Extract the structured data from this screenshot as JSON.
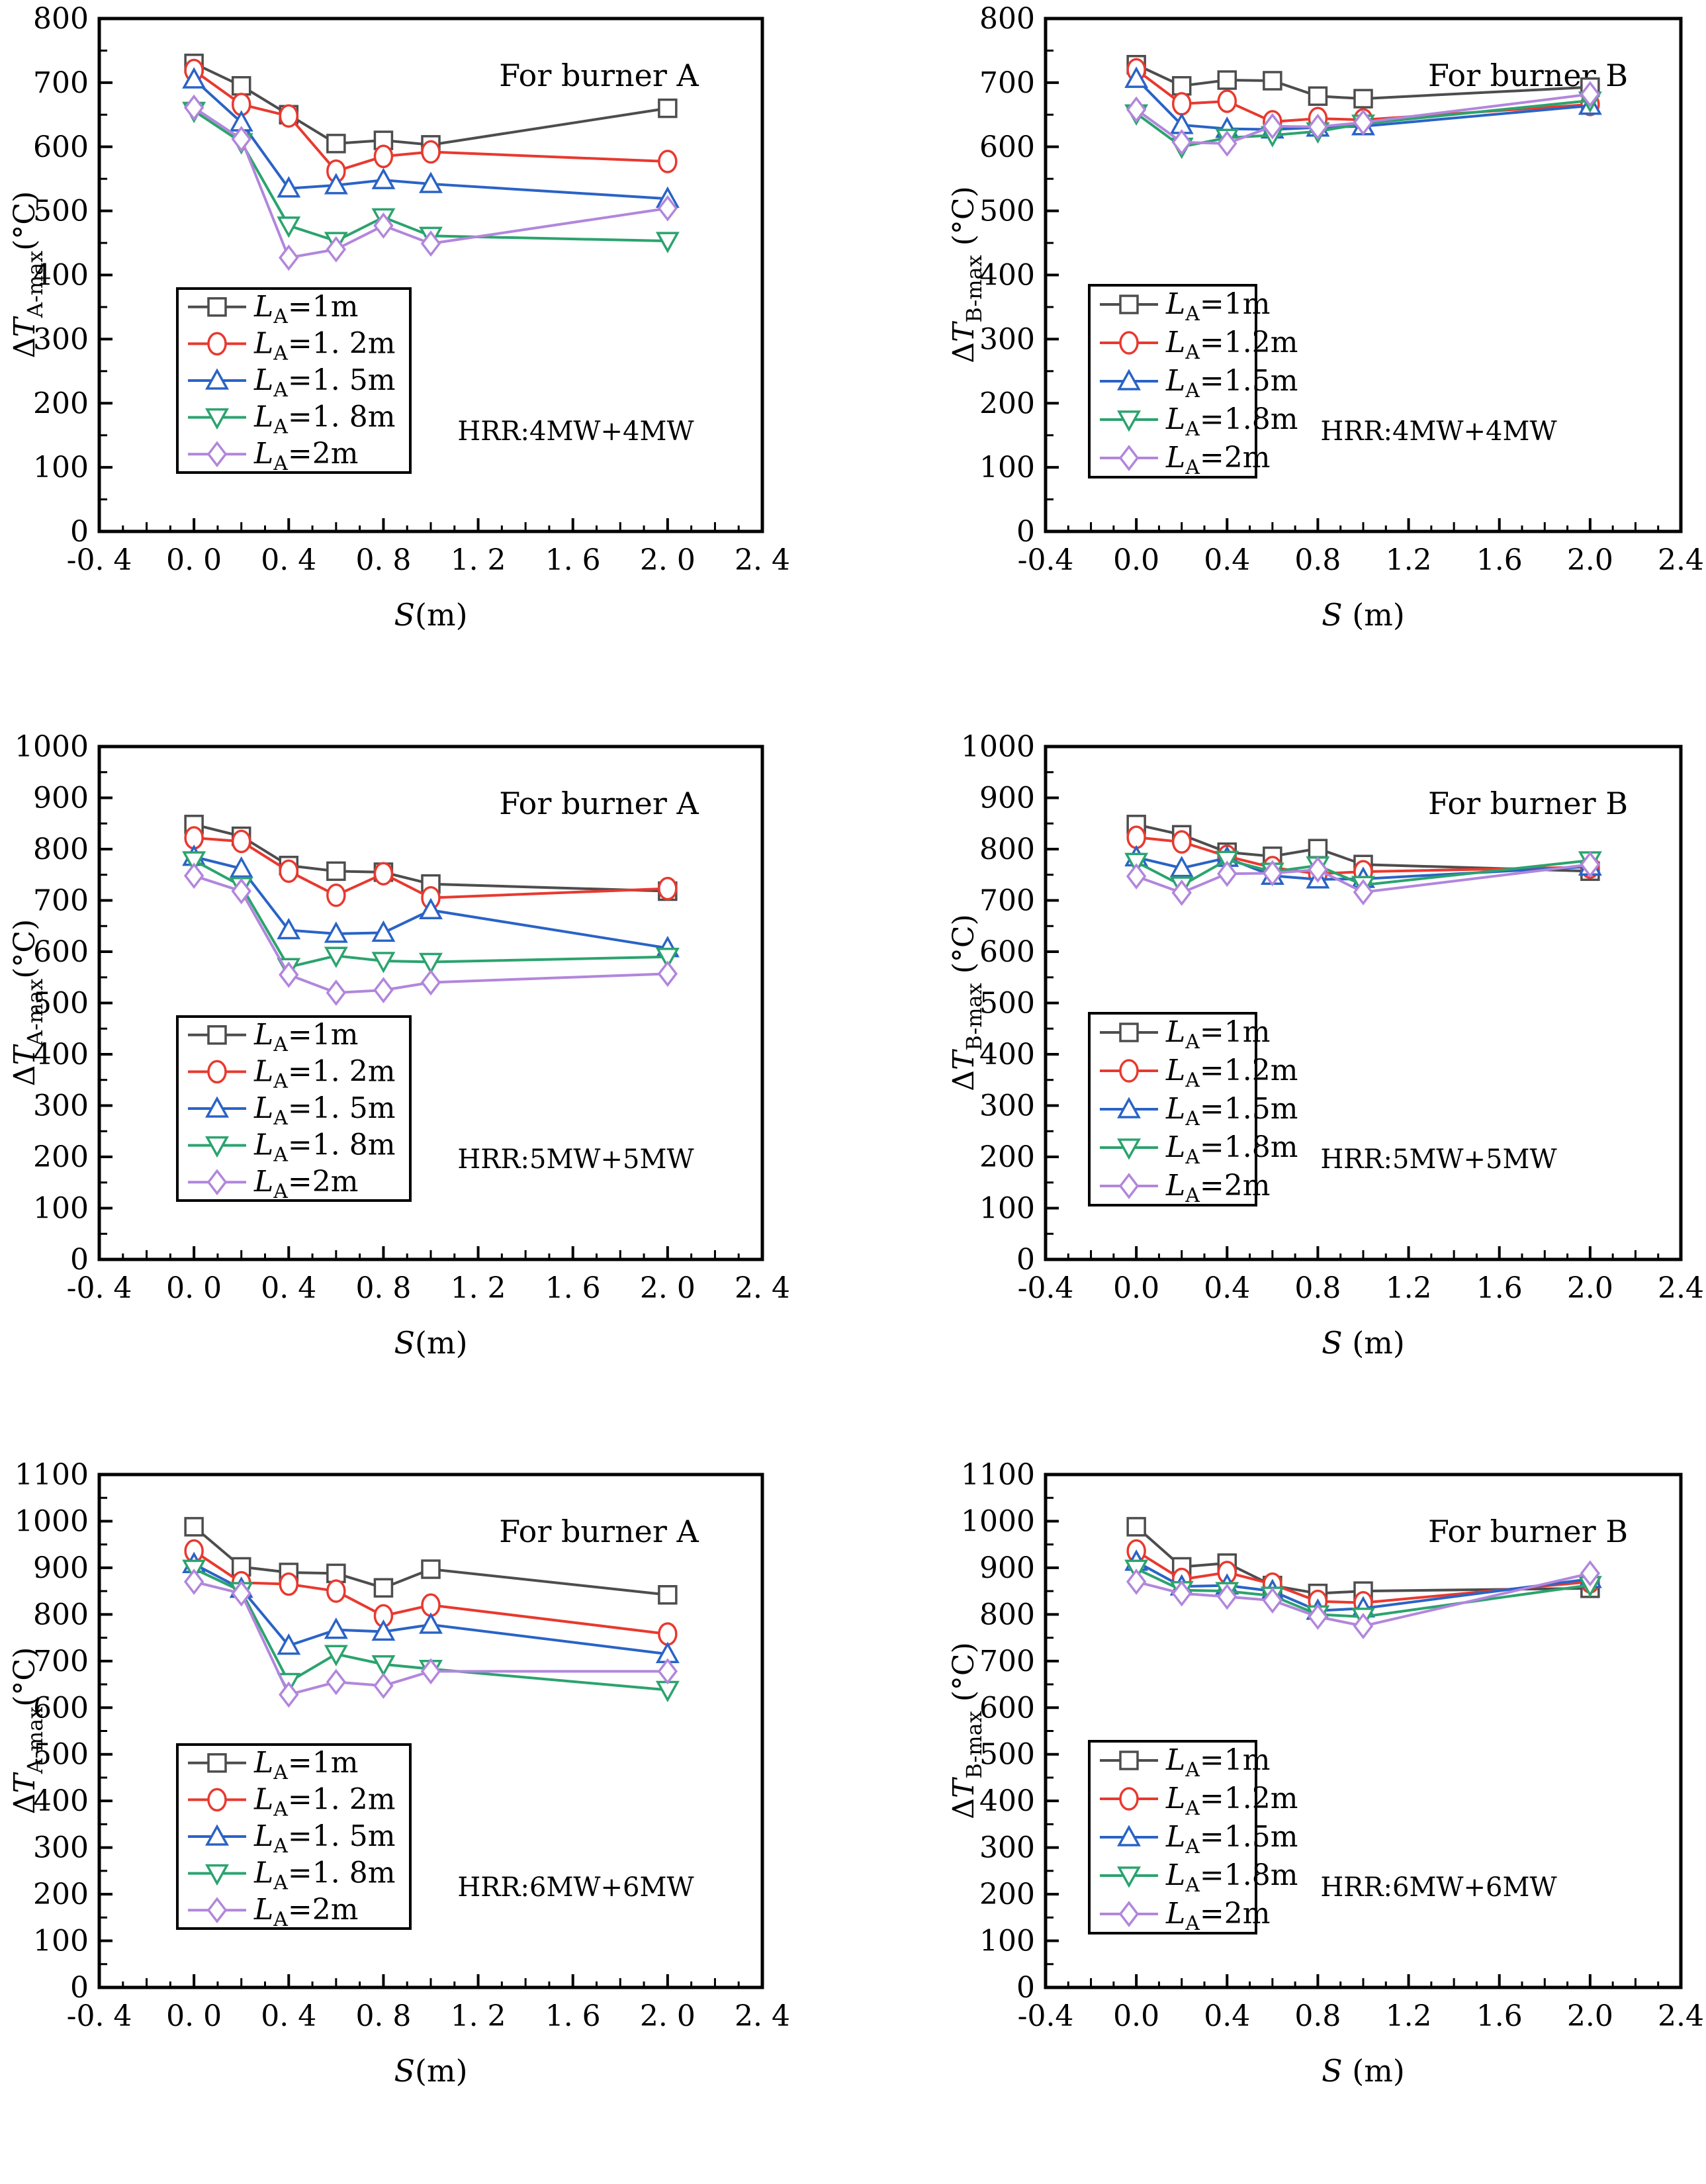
{
  "figure": {
    "background": "#ffffff",
    "frame_color": "#000000",
    "series_colors": {
      "LA-1m": "#4d4d4d",
      "LA-1.2m": "#e8392f",
      "LA-1.5m": "#2a63c6",
      "LA-1.8m": "#2ba36e",
      "LA-2m": "#b286dc"
    }
  },
  "chart_data": [
    {
      "id": "burnerA-4MW",
      "type": "line",
      "side": "left",
      "title": "For burner A",
      "annotation": "HRR:4MW+4MW",
      "xlabel_s": "S",
      "xlabel_rest": "(m)",
      "ylabel_delta": "Δ",
      "ylabel_T": "T",
      "ylabel_sub": "A-max",
      "ylabel_unit": "(°C)",
      "xlim": [
        -0.4,
        2.4
      ],
      "ylim": [
        0,
        800
      ],
      "ytick_step": 100,
      "xtick_labels": [
        "-0. 4",
        "0. 0",
        "0. 4",
        "0. 8",
        "1. 2",
        "1. 6",
        "2. 0",
        "2. 4"
      ],
      "x": [
        0,
        0.2,
        0.4,
        0.6,
        0.8,
        1.0,
        2.0
      ],
      "series": [
        {
          "name": "LA-1m",
          "label_pre": "L",
          "label_sub": "A",
          "label_post": "=1m",
          "color": "#4d4d4d",
          "marker": "square",
          "values": [
            730,
            695,
            650,
            605,
            610,
            603,
            660
          ]
        },
        {
          "name": "LA-1.2m",
          "label_pre": "L",
          "label_sub": "A",
          "label_post": "=1. 2m",
          "color": "#e8392f",
          "marker": "circle",
          "values": [
            719,
            666,
            648,
            562,
            585,
            592,
            577
          ]
        },
        {
          "name": "LA-1.5m",
          "label_pre": "L",
          "label_sub": "A",
          "label_post": "=1. 5m",
          "color": "#2a63c6",
          "marker": "triangle-up",
          "values": [
            705,
            638,
            535,
            540,
            548,
            542,
            519
          ]
        },
        {
          "name": "LA-1.8m",
          "label_pre": "L",
          "label_sub": "A",
          "label_post": "=1. 8m",
          "color": "#2ba36e",
          "marker": "triangle-down",
          "values": [
            656,
            607,
            477,
            453,
            490,
            461,
            453
          ]
        },
        {
          "name": "LA-2m",
          "label_pre": "L",
          "label_sub": "A",
          "label_post": "=2m",
          "color": "#b286dc",
          "marker": "diamond",
          "values": [
            661,
            612,
            427,
            440,
            477,
            449,
            504
          ]
        }
      ]
    },
    {
      "id": "burnerB-4MW",
      "type": "line",
      "side": "right",
      "title": "For burner B",
      "annotation": "HRR:4MW+4MW",
      "xlabel_s": "S",
      "xlabel_rest": " (m)",
      "ylabel_delta": "Δ",
      "ylabel_T": "T",
      "ylabel_sub": "B-max",
      "ylabel_unit": " (°C)",
      "xlim": [
        -0.4,
        2.4
      ],
      "ylim": [
        0,
        800
      ],
      "ytick_step": 100,
      "xtick_labels": [
        "-0.4",
        "0.0",
        "0.4",
        "0.8",
        "1.2",
        "1.6",
        "2.0",
        "2.4"
      ],
      "x": [
        0,
        0.2,
        0.4,
        0.6,
        0.8,
        1.0,
        2.0
      ],
      "series": [
        {
          "name": "LA-1m",
          "label_pre": "L",
          "label_sub": "A",
          "label_post": "=1m",
          "color": "#4d4d4d",
          "marker": "square",
          "values": [
            728,
            695,
            704,
            703,
            679,
            675,
            693
          ]
        },
        {
          "name": "LA-1.2m",
          "label_pre": "L",
          "label_sub": "A",
          "label_post": "=1.2m",
          "color": "#e8392f",
          "marker": "circle",
          "values": [
            720,
            667,
            671,
            639,
            644,
            642,
            666
          ]
        },
        {
          "name": "LA-1.5m",
          "label_pre": "L",
          "label_sub": "A",
          "label_post": "=1.5m",
          "color": "#2a63c6",
          "marker": "triangle-up",
          "values": [
            706,
            634,
            628,
            627,
            630,
            632,
            664
          ]
        },
        {
          "name": "LA-1.8m",
          "label_pre": "L",
          "label_sub": "A",
          "label_post": "=1.8m",
          "color": "#2ba36e",
          "marker": "triangle-down",
          "values": [
            652,
            600,
            614,
            618,
            624,
            636,
            672
          ]
        },
        {
          "name": "LA-2m",
          "label_pre": "L",
          "label_sub": "A",
          "label_post": "=2m",
          "color": "#b286dc",
          "marker": "diamond",
          "values": [
            658,
            607,
            605,
            632,
            631,
            638,
            682
          ]
        }
      ]
    },
    {
      "id": "burnerA-5MW",
      "type": "line",
      "side": "left",
      "title": "For burner A",
      "annotation": "HRR:5MW+5MW",
      "xlabel_s": "S",
      "xlabel_rest": "(m)",
      "ylabel_delta": "Δ",
      "ylabel_T": "T",
      "ylabel_sub": "A-max",
      "ylabel_unit": "(°C)",
      "xlim": [
        -0.4,
        2.4
      ],
      "ylim": [
        0,
        1000
      ],
      "ytick_step": 100,
      "xtick_labels": [
        "-0. 4",
        "0. 0",
        "0. 4",
        "0. 8",
        "1. 2",
        "1. 6",
        "2. 0",
        "2. 4"
      ],
      "x": [
        0,
        0.2,
        0.4,
        0.6,
        0.8,
        1.0,
        2.0
      ],
      "series": [
        {
          "name": "LA-1m",
          "label_pre": "L",
          "label_sub": "A",
          "label_post": "=1m",
          "color": "#4d4d4d",
          "marker": "square",
          "values": [
            848,
            825,
            768,
            757,
            755,
            732,
            718
          ]
        },
        {
          "name": "LA-1.2m",
          "label_pre": "L",
          "label_sub": "A",
          "label_post": "=1. 2m",
          "color": "#e8392f",
          "marker": "circle",
          "values": [
            822,
            815,
            757,
            710,
            752,
            705,
            723
          ]
        },
        {
          "name": "LA-1.5m",
          "label_pre": "L",
          "label_sub": "A",
          "label_post": "=1. 5m",
          "color": "#2a63c6",
          "marker": "triangle-up",
          "values": [
            785,
            762,
            642,
            635,
            637,
            681,
            607
          ]
        },
        {
          "name": "LA-1.8m",
          "label_pre": "L",
          "label_sub": "A",
          "label_post": "=1. 8m",
          "color": "#2ba36e",
          "marker": "triangle-down",
          "values": [
            778,
            728,
            570,
            592,
            582,
            580,
            590
          ]
        },
        {
          "name": "LA-2m",
          "label_pre": "L",
          "label_sub": "A",
          "label_post": "=2m",
          "color": "#b286dc",
          "marker": "diamond",
          "values": [
            748,
            718,
            555,
            520,
            525,
            540,
            557
          ]
        }
      ]
    },
    {
      "id": "burnerB-5MW",
      "type": "line",
      "side": "right",
      "title": "For burner B",
      "annotation": "HRR:5MW+5MW",
      "xlabel_s": "S",
      "xlabel_rest": " (m)",
      "ylabel_delta": "Δ",
      "ylabel_T": "T",
      "ylabel_sub": "B-max",
      "ylabel_unit": " (°C)",
      "xlim": [
        -0.4,
        2.4
      ],
      "ylim": [
        0,
        1000
      ],
      "ytick_step": 100,
      "xtick_labels": [
        "-0.4",
        "0.0",
        "0.4",
        "0.8",
        "1.2",
        "1.6",
        "2.0",
        "2.4"
      ],
      "x": [
        0,
        0.2,
        0.4,
        0.6,
        0.8,
        1.0,
        2.0
      ],
      "series": [
        {
          "name": "LA-1m",
          "label_pre": "L",
          "label_sub": "A",
          "label_post": "=1m",
          "color": "#4d4d4d",
          "marker": "square",
          "values": [
            848,
            828,
            794,
            786,
            801,
            770,
            757
          ]
        },
        {
          "name": "LA-1.2m",
          "label_pre": "L",
          "label_sub": "A",
          "label_post": "=1.2m",
          "color": "#e8392f",
          "marker": "circle",
          "values": [
            823,
            814,
            786,
            764,
            752,
            756,
            765
          ]
        },
        {
          "name": "LA-1.5m",
          "label_pre": "L",
          "label_sub": "A",
          "label_post": "=1.5m",
          "color": "#2a63c6",
          "marker": "triangle-up",
          "values": [
            784,
            763,
            783,
            748,
            741,
            742,
            766
          ]
        },
        {
          "name": "LA-1.8m",
          "label_pre": "L",
          "label_sub": "A",
          "label_post": "=1.8m",
          "color": "#2ba36e",
          "marker": "triangle-down",
          "values": [
            775,
            729,
            779,
            756,
            768,
            730,
            778
          ]
        },
        {
          "name": "LA-2m",
          "label_pre": "L",
          "label_sub": "A",
          "label_post": "=2m",
          "color": "#b286dc",
          "marker": "diamond",
          "values": [
            747,
            715,
            752,
            753,
            760,
            716,
            770
          ]
        }
      ]
    },
    {
      "id": "burnerA-6MW",
      "type": "line",
      "side": "left",
      "title": "For burner A",
      "annotation": "HRR:6MW+6MW",
      "xlabel_s": "S",
      "xlabel_rest": "(m)",
      "ylabel_delta": "Δ",
      "ylabel_T": "T",
      "ylabel_sub": "A-max",
      "ylabel_unit": "(°C)",
      "xlim": [
        -0.4,
        2.4
      ],
      "ylim": [
        0,
        1100
      ],
      "ytick_step": 100,
      "xtick_labels": [
        "-0. 4",
        "0. 0",
        "0. 4",
        "0. 8",
        "1. 2",
        "1. 6",
        "2. 0",
        "2. 4"
      ],
      "x": [
        0,
        0.2,
        0.4,
        0.6,
        0.8,
        1.0,
        2.0
      ],
      "series": [
        {
          "name": "LA-1m",
          "label_pre": "L",
          "label_sub": "A",
          "label_post": "=1m",
          "color": "#4d4d4d",
          "marker": "square",
          "values": [
            988,
            902,
            890,
            888,
            857,
            897,
            842
          ]
        },
        {
          "name": "LA-1.2m",
          "label_pre": "L",
          "label_sub": "A",
          "label_post": "=1. 2m",
          "color": "#e8392f",
          "marker": "circle",
          "values": [
            936,
            868,
            865,
            850,
            797,
            820,
            758
          ]
        },
        {
          "name": "LA-1.5m",
          "label_pre": "L",
          "label_sub": "A",
          "label_post": "=1. 5m",
          "color": "#2a63c6",
          "marker": "triangle-up",
          "values": [
            908,
            855,
            733,
            767,
            763,
            778,
            715
          ]
        },
        {
          "name": "LA-1.8m",
          "label_pre": "L",
          "label_sub": "A",
          "label_post": "=1. 8m",
          "color": "#2ba36e",
          "marker": "triangle-down",
          "values": [
            898,
            850,
            655,
            715,
            693,
            683,
            638
          ]
        },
        {
          "name": "LA-2m",
          "label_pre": "L",
          "label_sub": "A",
          "label_post": "=2m",
          "color": "#b286dc",
          "marker": "diamond",
          "values": [
            870,
            845,
            628,
            655,
            647,
            678,
            678
          ]
        }
      ]
    },
    {
      "id": "burnerB-6MW",
      "type": "line",
      "side": "right",
      "title": "For burner B",
      "annotation": "HRR:6MW+6MW",
      "xlabel_s": "S",
      "xlabel_rest": " (m)",
      "ylabel_delta": "Δ",
      "ylabel_T": "T",
      "ylabel_sub": "B-max",
      "ylabel_unit": " (°C)",
      "xlim": [
        -0.4,
        2.4
      ],
      "ylim": [
        0,
        1100
      ],
      "ytick_step": 100,
      "xtick_labels": [
        "-0.4",
        "0.0",
        "0.4",
        "0.8",
        "1.2",
        "1.6",
        "2.0",
        "2.4"
      ],
      "x": [
        0,
        0.2,
        0.4,
        0.6,
        0.8,
        1.0,
        2.0
      ],
      "series": [
        {
          "name": "LA-1m",
          "label_pre": "L",
          "label_sub": "A",
          "label_post": "=1m",
          "color": "#4d4d4d",
          "marker": "square",
          "values": [
            988,
            902,
            910,
            862,
            845,
            850,
            856
          ]
        },
        {
          "name": "LA-1.2m",
          "label_pre": "L",
          "label_sub": "A",
          "label_post": "=1.2m",
          "color": "#e8392f",
          "marker": "circle",
          "values": [
            936,
            875,
            890,
            865,
            828,
            825,
            870
          ]
        },
        {
          "name": "LA-1.5m",
          "label_pre": "L",
          "label_sub": "A",
          "label_post": "=1.5m",
          "color": "#2a63c6",
          "marker": "triangle-up",
          "values": [
            913,
            860,
            862,
            850,
            808,
            813,
            876
          ]
        },
        {
          "name": "LA-1.8m",
          "label_pre": "L",
          "label_sub": "A",
          "label_post": "=1.8m",
          "color": "#2ba36e",
          "marker": "triangle-down",
          "values": [
            898,
            852,
            850,
            840,
            800,
            795,
            863
          ]
        },
        {
          "name": "LA-2m",
          "label_pre": "L",
          "label_sub": "A",
          "label_post": "=2m",
          "color": "#b286dc",
          "marker": "diamond",
          "values": [
            870,
            845,
            838,
            830,
            795,
            775,
            888
          ]
        }
      ]
    }
  ]
}
